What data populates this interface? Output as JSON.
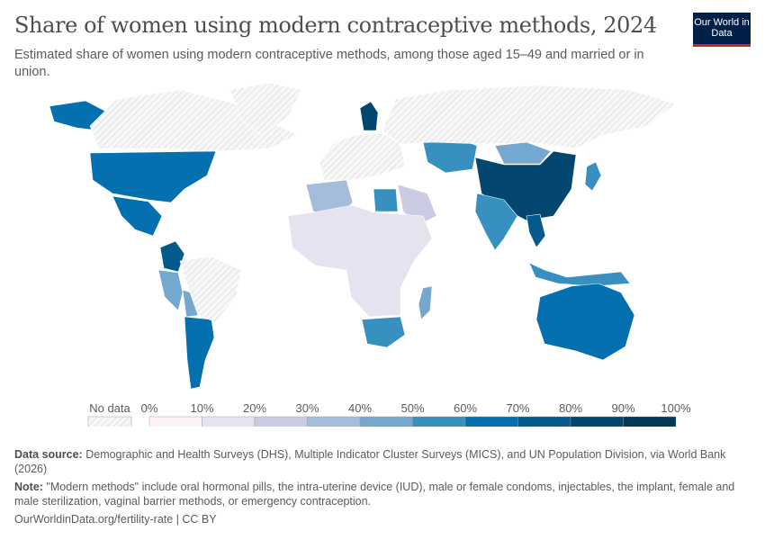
{
  "header": {
    "title": "Share of women using modern contraceptive methods, 2024",
    "subtitle": "Estimated share of women using modern contraceptive methods, among those aged 15–49 and married or in union.",
    "logo_text": "Our World in Data"
  },
  "chart_data": {
    "type": "map",
    "title": "Share of women using modern contraceptive methods, 2024",
    "year": 2024,
    "legend": {
      "no_data_label": "No data",
      "tick_labels": [
        "0%",
        "10%",
        "20%",
        "30%",
        "40%",
        "50%",
        "60%",
        "70%",
        "80%",
        "90%",
        "100%"
      ],
      "bins": [
        {
          "range": [
            0,
            10
          ],
          "color": "#fcf1f7"
        },
        {
          "range": [
            10,
            20
          ],
          "color": "#e7e2ef"
        },
        {
          "range": [
            20,
            30
          ],
          "color": "#cbcce3"
        },
        {
          "range": [
            30,
            40
          ],
          "color": "#a6bcdb"
        },
        {
          "range": [
            40,
            50
          ],
          "color": "#74a8cf"
        },
        {
          "range": [
            50,
            60
          ],
          "color": "#3790c0"
        },
        {
          "range": [
            60,
            70
          ],
          "color": "#0570b0"
        },
        {
          "range": [
            70,
            80
          ],
          "color": "#045a8d"
        },
        {
          "range": [
            80,
            90
          ],
          "color": "#03466f"
        },
        {
          "range": [
            90,
            100
          ],
          "color": "#023858"
        }
      ],
      "no_data_color": "#e6e6e6"
    },
    "regions": [
      {
        "name": "United States",
        "value": 65
      },
      {
        "name": "Mexico",
        "value": 66
      },
      {
        "name": "Colombia",
        "value": 75
      },
      {
        "name": "Peru",
        "value": 45
      },
      {
        "name": "Bolivia",
        "value": 45
      },
      {
        "name": "Argentina",
        "value": 65
      },
      {
        "name": "Finland",
        "value": 85
      },
      {
        "name": "Kazakhstan",
        "value": 55
      },
      {
        "name": "Mongolia",
        "value": 45
      },
      {
        "name": "China",
        "value": 85
      },
      {
        "name": "India",
        "value": 55
      },
      {
        "name": "Thailand",
        "value": 75
      },
      {
        "name": "Japan",
        "value": 55
      },
      {
        "name": "Indonesia",
        "value": 57
      },
      {
        "name": "Australia",
        "value": 65
      },
      {
        "name": "Algeria",
        "value": 38
      },
      {
        "name": "Egypt",
        "value": 55
      },
      {
        "name": "Saudi Arabia",
        "value": 25
      },
      {
        "name": "West & Central Africa",
        "value": 15
      },
      {
        "name": "South Africa",
        "value": 55
      },
      {
        "name": "Madagascar",
        "value": 45
      },
      {
        "name": "Canada",
        "value": null
      },
      {
        "name": "Greenland",
        "value": null
      },
      {
        "name": "Brazil",
        "value": null
      },
      {
        "name": "Russia",
        "value": null
      },
      {
        "name": "Europe",
        "value": null
      }
    ]
  },
  "footer": {
    "source_label": "Data source:",
    "source_text": "Demographic and Health Surveys (DHS), Multiple Indicator Cluster Surveys (MICS), and UN Population Division, via World Bank (2026)",
    "note_label": "Note:",
    "note_text": "\"Modern methods\" include oral hormonal pills, the intra-uterine device (IUD), male or female condoms, injectables, the implant, female and male sterilization, vaginal barrier methods, or emergency contraception.",
    "url_text": "OurWorldinData.org/fertility-rate | CC BY"
  }
}
